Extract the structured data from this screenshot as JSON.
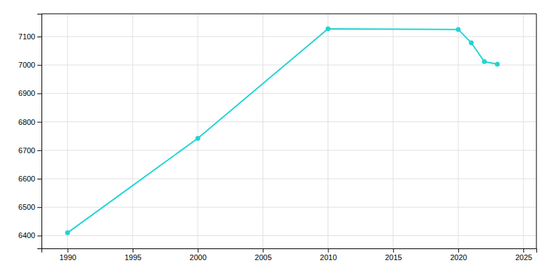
{
  "chart_data": {
    "type": "line",
    "x": [
      1990,
      2000,
      2010,
      2020,
      2021,
      2022,
      2023
    ],
    "values": [
      6410,
      6742,
      7127,
      7125,
      7078,
      7012,
      7003
    ],
    "color": "#22d3d3",
    "marker": "circle",
    "xlim": [
      1988,
      2026
    ],
    "ylim": [
      6355,
      7180
    ],
    "xticks": [
      1990,
      1995,
      2000,
      2005,
      2010,
      2015,
      2020,
      2025
    ],
    "yticks": [
      6400,
      6500,
      6600,
      6700,
      6800,
      6900,
      7000,
      7100
    ],
    "grid": true
  }
}
